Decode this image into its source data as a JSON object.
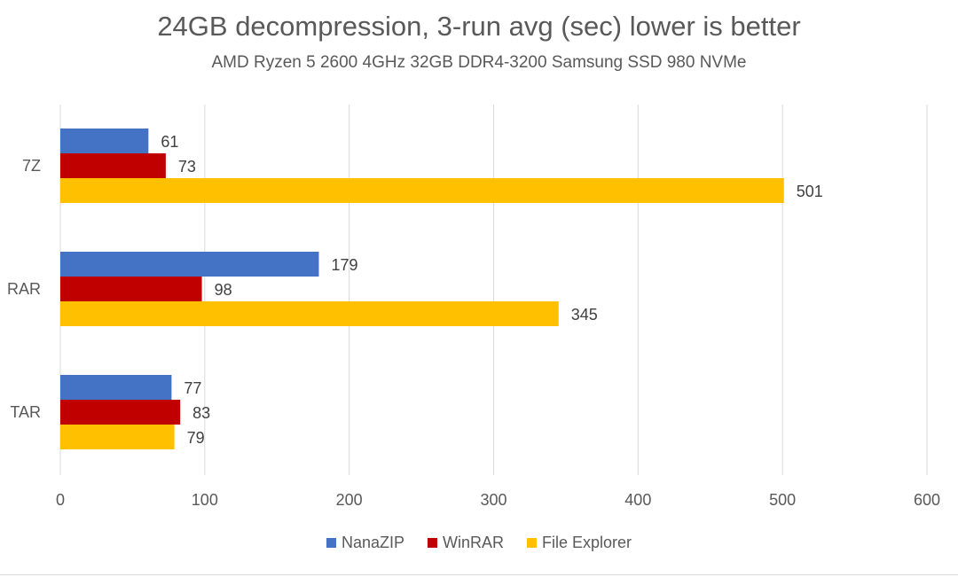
{
  "chart_data": {
    "type": "bar",
    "orientation": "horizontal",
    "title": "24GB decompression, 3-run avg (sec) lower is better",
    "subtitle": "AMD Ryzen 5 2600 4GHz 32GB DDR4-3200 Samsung SSD 980 NVMe",
    "categories": [
      "7Z",
      "RAR",
      "TAR"
    ],
    "series": [
      {
        "name": "NanaZIP",
        "color": "#4472C4",
        "values": [
          61,
          179,
          77
        ]
      },
      {
        "name": "WinRAR",
        "color": "#C00000",
        "values": [
          73,
          98,
          83
        ]
      },
      {
        "name": "File Explorer",
        "color": "#FFC000",
        "values": [
          501,
          345,
          79
        ]
      }
    ],
    "xlim": [
      0,
      600
    ],
    "xticks": [
      "0",
      "100",
      "200",
      "300",
      "400",
      "500",
      "600"
    ],
    "xlabel": "",
    "ylabel": "",
    "grid": "vertical",
    "legend_position": "bottom"
  }
}
